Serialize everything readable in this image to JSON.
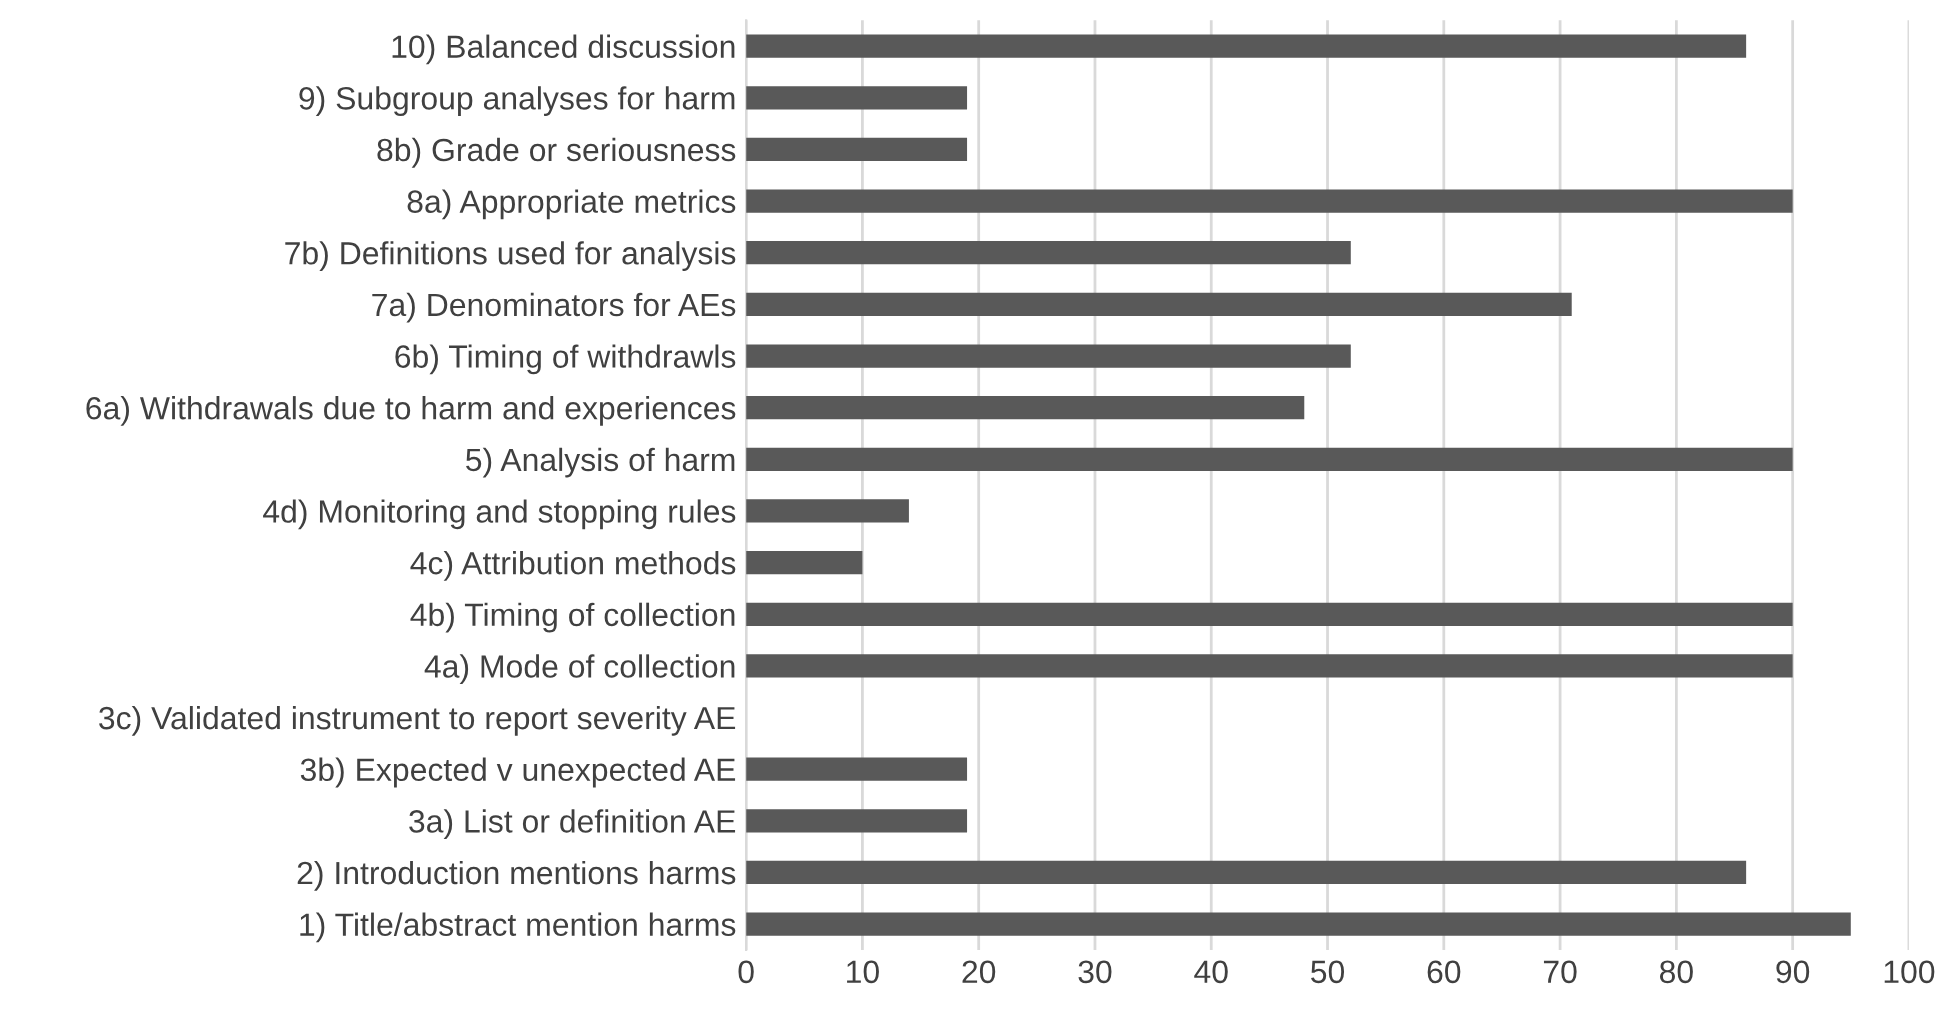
{
  "chart_data": {
    "type": "bar",
    "orientation": "horizontal",
    "categories": [
      "10) Balanced discussion",
      "9) Subgroup analyses for harm",
      "8b) Grade or seriousness",
      "8a) Appropriate metrics",
      "7b) Definitions used for analysis",
      "7a) Denominators for AEs",
      "6b) Timing of withdrawls",
      "6a) Withdrawals due to harm and experiences",
      "5) Analysis of harm",
      "4d) Monitoring and stopping rules",
      "4c) Attribution methods",
      "4b) Timing of collection",
      "4a) Mode of collection",
      "3c) Validated instrument to report severity AE",
      "3b) Expected v unexpected AE",
      "3a) List or definition AE",
      "2) Introduction mentions harms",
      "1) Title/abstract mention harms"
    ],
    "values": [
      86,
      19,
      19,
      90,
      52,
      71,
      52,
      48,
      90,
      14,
      10,
      90,
      90,
      0,
      19,
      19,
      86,
      95
    ],
    "color": "#595959",
    "xlim": [
      0,
      100
    ],
    "xticks": [
      0,
      10,
      20,
      30,
      40,
      50,
      60,
      70,
      80,
      90,
      100
    ],
    "grid": "x",
    "legend": false
  }
}
